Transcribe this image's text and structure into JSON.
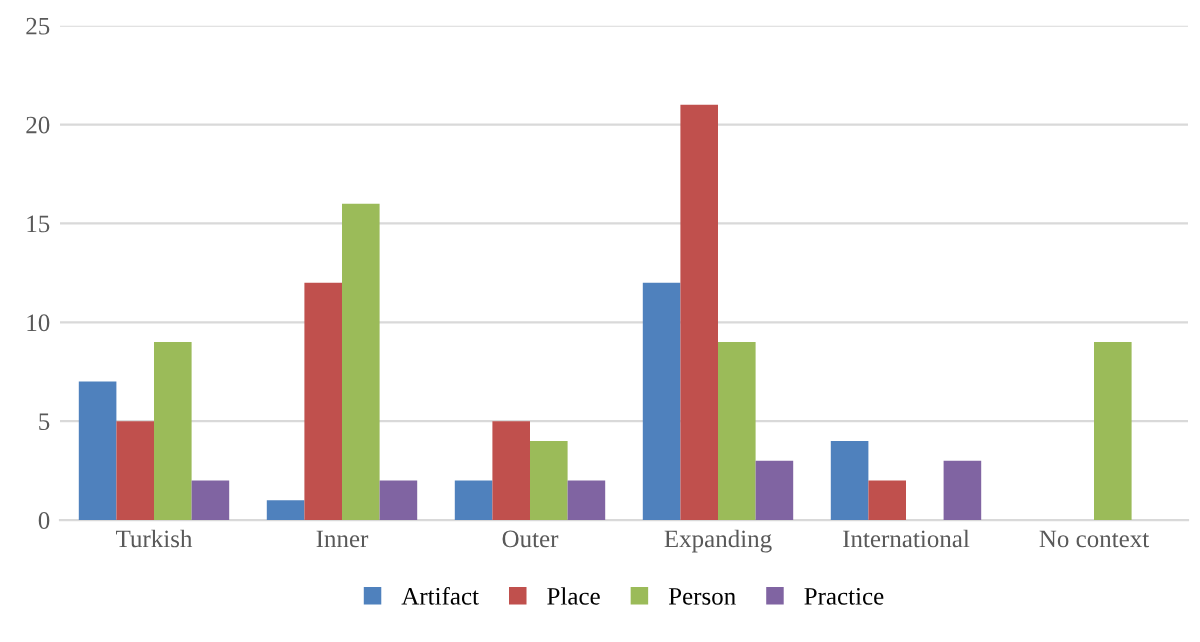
{
  "chart_data": {
    "type": "bar",
    "categories": [
      "Turkish",
      "Inner",
      "Outer",
      "Expanding",
      "International",
      "No context"
    ],
    "series": [
      {
        "name": "Artifact",
        "color": "#4f81bd",
        "values": [
          7,
          1,
          2,
          12,
          4,
          0
        ]
      },
      {
        "name": "Place",
        "color": "#c0504d",
        "values": [
          5,
          12,
          5,
          21,
          2,
          0
        ]
      },
      {
        "name": "Person",
        "color": "#9bbb59",
        "values": [
          9,
          16,
          4,
          9,
          0,
          9
        ]
      },
      {
        "name": "Practice",
        "color": "#8064a2",
        "values": [
          2,
          2,
          2,
          3,
          3,
          0
        ]
      }
    ],
    "ylim": [
      0,
      25
    ],
    "yticks": [
      0,
      5,
      10,
      15,
      20,
      25
    ],
    "grid": "y",
    "legend": "bottom"
  }
}
